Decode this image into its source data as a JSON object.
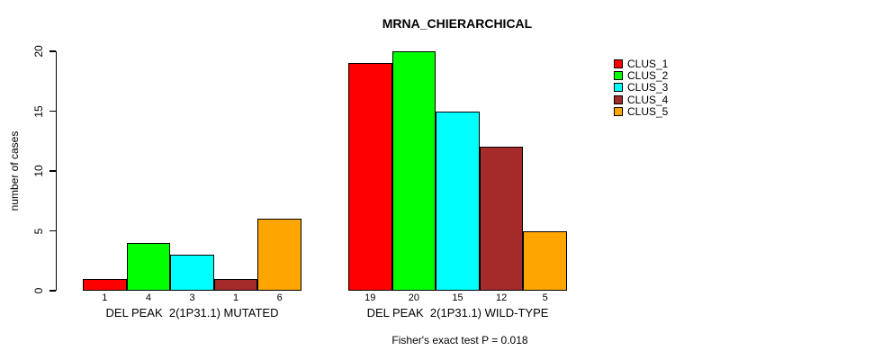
{
  "chart_data": {
    "type": "bar",
    "title": "MRNA_CHIERARCHICAL",
    "ylabel": "number of cases",
    "xlabel": "",
    "ylim": [
      0,
      20
    ],
    "yticks": [
      0,
      5,
      10,
      15,
      20
    ],
    "grid": false,
    "legend_position": "right",
    "categories": [
      "DEL PEAK  2(1P31.1) MUTATED",
      "DEL PEAK  2(1P31.1) WILD-TYPE"
    ],
    "groups": [
      {
        "label": "DEL PEAK  2(1P31.1) MUTATED",
        "values": [
          1,
          4,
          3,
          1,
          6
        ]
      },
      {
        "label": "DEL PEAK  2(1P31.1) WILD-TYPE",
        "values": [
          19,
          20,
          15,
          12,
          5
        ]
      }
    ],
    "series": [
      {
        "name": "CLUS_1",
        "color": "#FF0000"
      },
      {
        "name": "CLUS_2",
        "color": "#00FF00"
      },
      {
        "name": "CLUS_3",
        "color": "#00FFFF"
      },
      {
        "name": "CLUS_4",
        "color": "#A52A2A"
      },
      {
        "name": "CLUS_5",
        "color": "#FFA500"
      }
    ],
    "annotation": "Fisher's exact test P = 0.018",
    "axis_color": "#000000",
    "background_color": "#FFFFFF"
  }
}
